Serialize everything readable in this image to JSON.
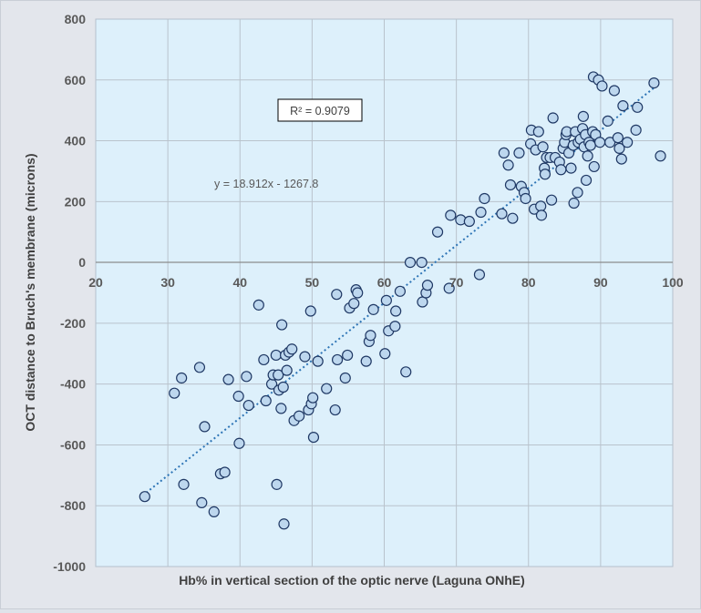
{
  "chart_data": {
    "type": "scatter",
    "xlabel": "Hb% in vertical section of the optic nerve (Laguna ONhE)",
    "ylabel": "OCT distance to Bruch's membrane (microns)",
    "xlim": [
      20,
      100
    ],
    "ylim": [
      -1000,
      800
    ],
    "x_ticks": [
      "20",
      "30",
      "40",
      "50",
      "60",
      "70",
      "80",
      "90",
      "100"
    ],
    "y_ticks": [
      "-1000",
      "-800",
      "-600",
      "-400",
      "-200",
      "0",
      "200",
      "400",
      "600",
      "800"
    ],
    "grid": true,
    "marker_fill": "#bdd7ee",
    "marker_edge": "#1f3864",
    "plot_background": "#ddf0fb",
    "trendline": {
      "style": "dotted",
      "color": "#2e75b6",
      "slope": 18.912,
      "intercept": -1267.8,
      "x_range": [
        27,
        98
      ],
      "equation_label": "y = 18.912x - 1267.8",
      "r2_label": "R² = 0.9079"
    },
    "series": [
      {
        "points": [
          [
            26.8,
            -770
          ],
          [
            30.9,
            -430
          ],
          [
            31.9,
            -380
          ],
          [
            32.2,
            -730
          ],
          [
            34.4,
            -345
          ],
          [
            34.7,
            -790
          ],
          [
            35.1,
            -540
          ],
          [
            36.4,
            -820
          ],
          [
            37.3,
            -695
          ],
          [
            37.9,
            -690
          ],
          [
            38.4,
            -385
          ],
          [
            39.8,
            -440
          ],
          [
            39.9,
            -595
          ],
          [
            40.9,
            -375
          ],
          [
            41.2,
            -470
          ],
          [
            42.6,
            -140
          ],
          [
            43.3,
            -320
          ],
          [
            43.6,
            -455
          ],
          [
            44.4,
            -400
          ],
          [
            44.6,
            -370
          ],
          [
            45.0,
            -305
          ],
          [
            45.1,
            -730
          ],
          [
            45.3,
            -370
          ],
          [
            45.4,
            -420
          ],
          [
            45.7,
            -480
          ],
          [
            45.8,
            -205
          ],
          [
            46.0,
            -410
          ],
          [
            46.1,
            -860
          ],
          [
            46.3,
            -305
          ],
          [
            46.5,
            -355
          ],
          [
            46.8,
            -295
          ],
          [
            47.2,
            -285
          ],
          [
            47.5,
            -520
          ],
          [
            48.2,
            -505
          ],
          [
            49.0,
            -310
          ],
          [
            49.5,
            -485
          ],
          [
            49.8,
            -160
          ],
          [
            49.9,
            -465
          ],
          [
            50.1,
            -445
          ],
          [
            50.2,
            -575
          ],
          [
            50.8,
            -325
          ],
          [
            52.0,
            -415
          ],
          [
            53.2,
            -485
          ],
          [
            53.4,
            -105
          ],
          [
            53.5,
            -320
          ],
          [
            54.6,
            -380
          ],
          [
            54.9,
            -305
          ],
          [
            55.2,
            -150
          ],
          [
            55.8,
            -135
          ],
          [
            56.1,
            -90
          ],
          [
            56.3,
            -100
          ],
          [
            57.5,
            -325
          ],
          [
            57.9,
            -260
          ],
          [
            58.1,
            -240
          ],
          [
            58.5,
            -155
          ],
          [
            60.1,
            -300
          ],
          [
            60.3,
            -125
          ],
          [
            60.6,
            -225
          ],
          [
            61.5,
            -210
          ],
          [
            61.6,
            -160
          ],
          [
            62.2,
            -95
          ],
          [
            63.0,
            -360
          ],
          [
            63.6,
            0
          ],
          [
            65.2,
            0
          ],
          [
            65.3,
            -130
          ],
          [
            65.8,
            -100
          ],
          [
            66.0,
            -75
          ],
          [
            67.4,
            100
          ],
          [
            69.0,
            -85
          ],
          [
            69.2,
            155
          ],
          [
            70.6,
            140
          ],
          [
            71.8,
            135
          ],
          [
            73.2,
            -40
          ],
          [
            73.4,
            165
          ],
          [
            73.9,
            210
          ],
          [
            76.3,
            160
          ],
          [
            76.6,
            360
          ],
          [
            77.2,
            320
          ],
          [
            77.5,
            255
          ],
          [
            77.8,
            145
          ],
          [
            78.7,
            360
          ],
          [
            79.0,
            250
          ],
          [
            79.4,
            230
          ],
          [
            79.6,
            210
          ],
          [
            80.3,
            390
          ],
          [
            80.4,
            435
          ],
          [
            80.8,
            175
          ],
          [
            81.0,
            370
          ],
          [
            81.4,
            430
          ],
          [
            81.7,
            185
          ],
          [
            81.8,
            155
          ],
          [
            82.0,
            380
          ],
          [
            82.2,
            310
          ],
          [
            82.3,
            290
          ],
          [
            82.5,
            345
          ],
          [
            83.0,
            345
          ],
          [
            83.2,
            205
          ],
          [
            83.4,
            475
          ],
          [
            83.7,
            345
          ],
          [
            84.3,
            330
          ],
          [
            84.5,
            305
          ],
          [
            84.8,
            375
          ],
          [
            85.0,
            395
          ],
          [
            85.2,
            420
          ],
          [
            85.3,
            430
          ],
          [
            85.6,
            360
          ],
          [
            85.9,
            310
          ],
          [
            86.2,
            385
          ],
          [
            86.3,
            195
          ],
          [
            86.5,
            430
          ],
          [
            86.8,
            230
          ],
          [
            86.9,
            395
          ],
          [
            87.2,
            405
          ],
          [
            87.5,
            440
          ],
          [
            87.6,
            480
          ],
          [
            87.7,
            380
          ],
          [
            87.9,
            420
          ],
          [
            88.0,
            270
          ],
          [
            88.2,
            350
          ],
          [
            88.4,
            395
          ],
          [
            88.6,
            385
          ],
          [
            88.9,
            430
          ],
          [
            89.0,
            610
          ],
          [
            89.1,
            315
          ],
          [
            89.3,
            420
          ],
          [
            89.7,
            600
          ],
          [
            89.9,
            395
          ],
          [
            90.2,
            580
          ],
          [
            91.0,
            465
          ],
          [
            91.3,
            395
          ],
          [
            91.9,
            565
          ],
          [
            92.4,
            410
          ],
          [
            92.6,
            375
          ],
          [
            92.9,
            340
          ],
          [
            93.1,
            515
          ],
          [
            93.7,
            395
          ],
          [
            94.9,
            435
          ],
          [
            95.1,
            510
          ],
          [
            97.4,
            590
          ],
          [
            98.3,
            350
          ]
        ]
      }
    ]
  }
}
